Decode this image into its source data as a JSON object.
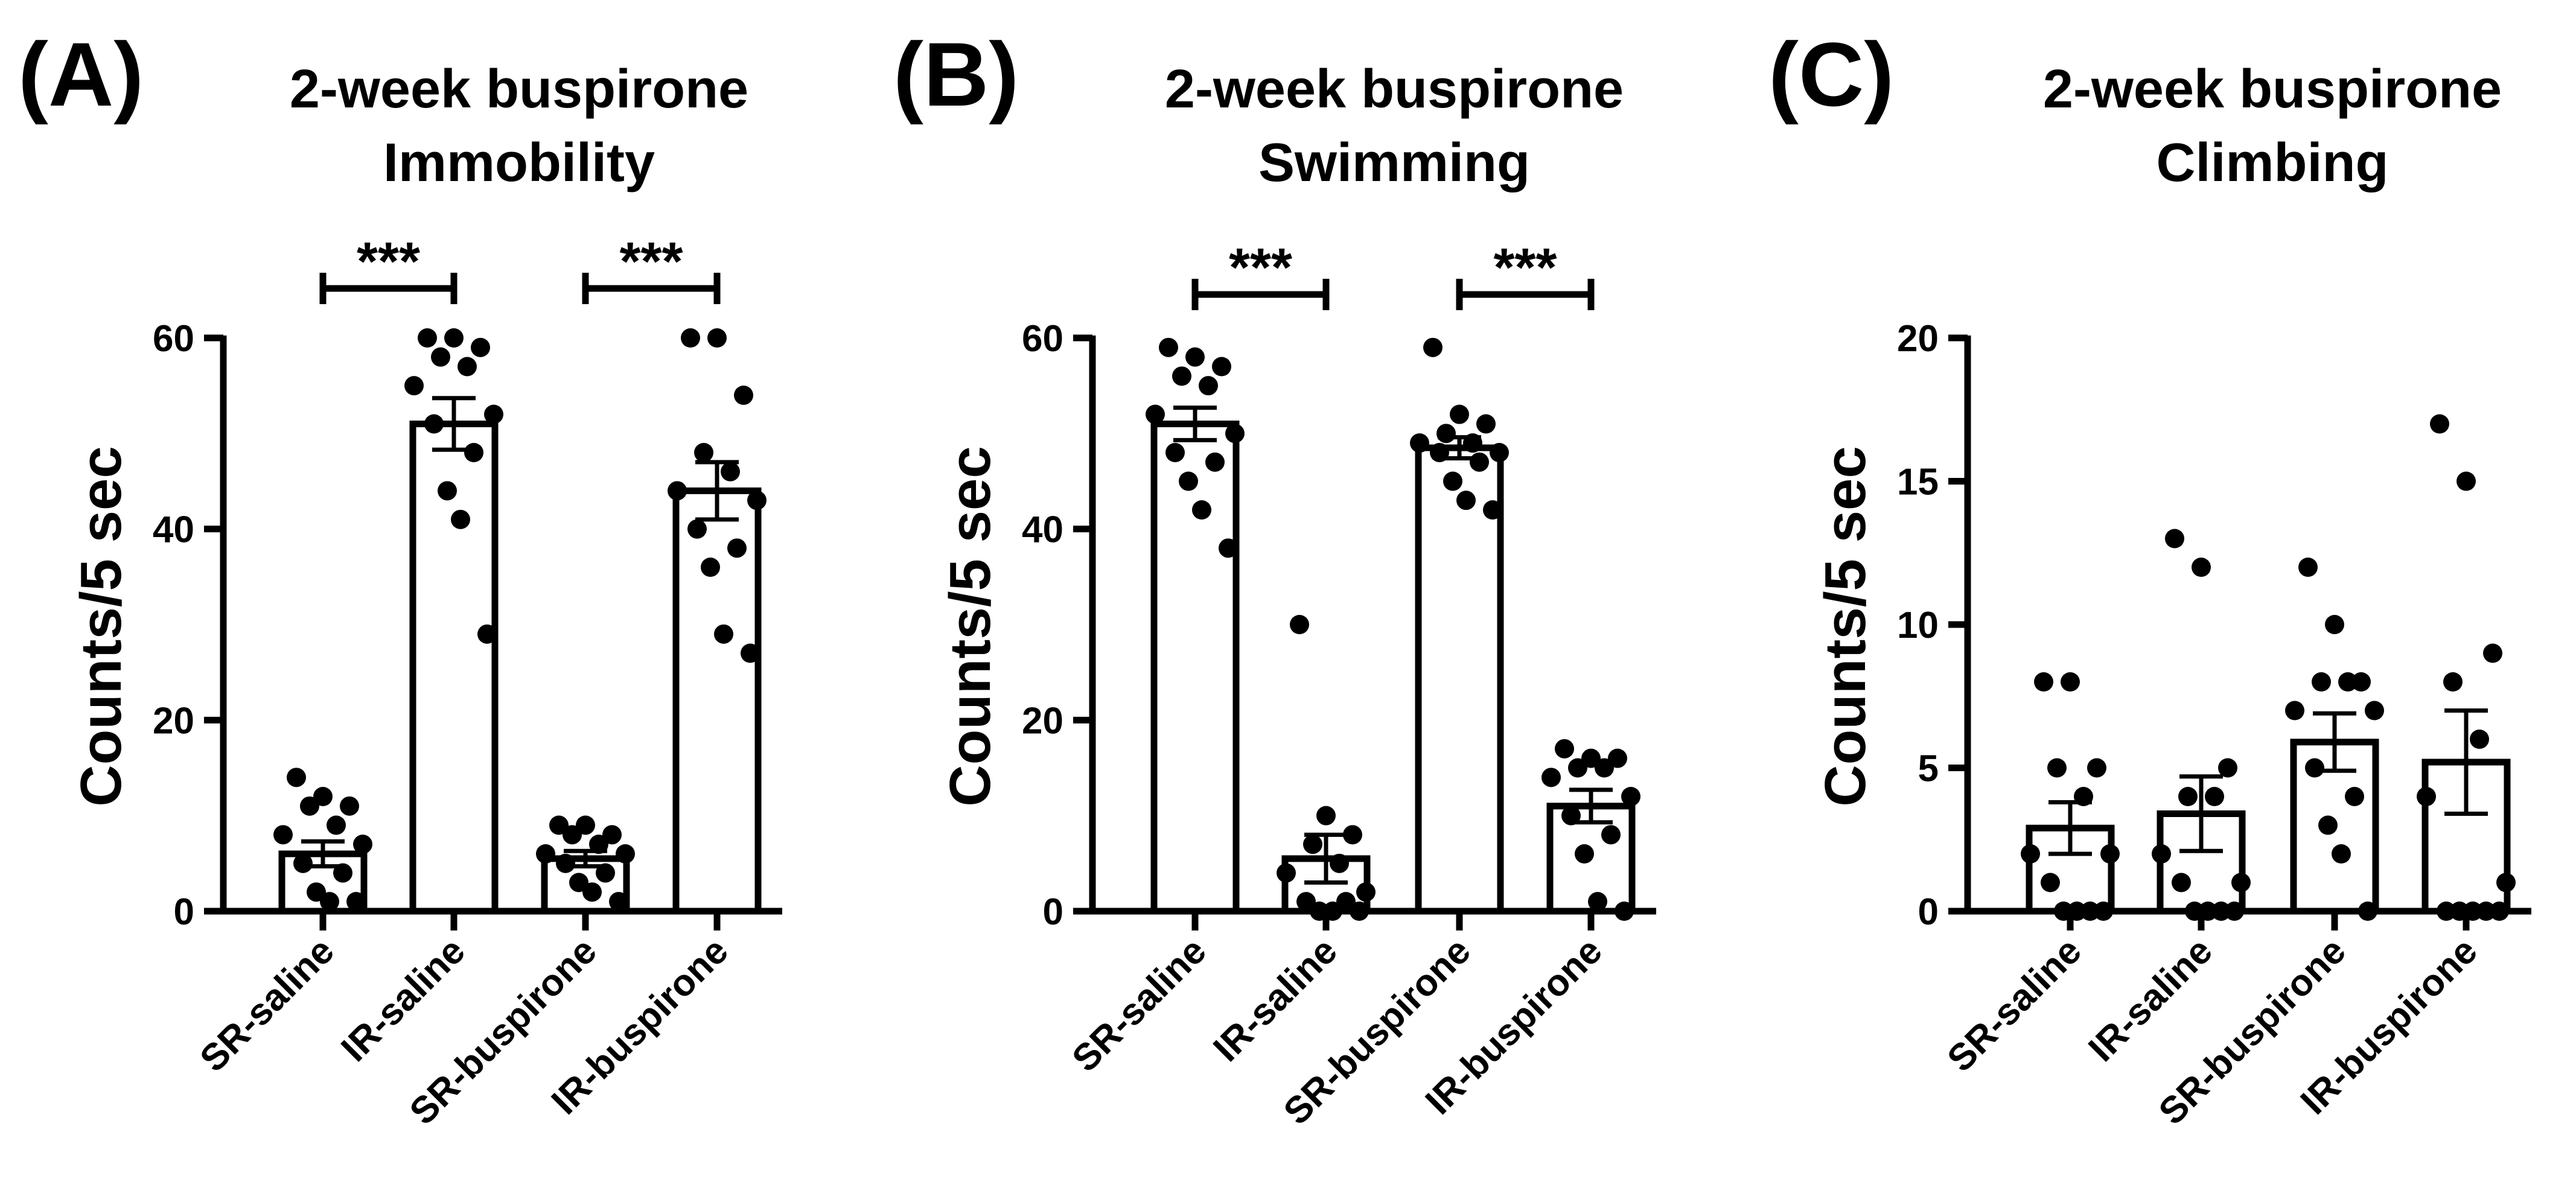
{
  "chart_data": [
    {
      "type": "bar",
      "panel": "(A)",
      "title": [
        "2-week buspirone",
        "Immobility"
      ],
      "xlabel": "",
      "ylabel": "Counts/5 sec",
      "ylim": [
        0,
        60
      ],
      "yticks": [
        0,
        20,
        40,
        60
      ],
      "categories": [
        "SR-saline",
        "IR-saline",
        "SR-buspirone",
        "IR-buspirone"
      ],
      "values": [
        6,
        51,
        5.5,
        44
      ],
      "sem": [
        1.3,
        2.7,
        0.8,
        3.0
      ],
      "points": [
        [
          14,
          12,
          11,
          11,
          9,
          8,
          7,
          5,
          4,
          2,
          1,
          1
        ],
        [
          60,
          60,
          59,
          58,
          57,
          55,
          52,
          51,
          48,
          44,
          41,
          29
        ],
        [
          9,
          9,
          8,
          8,
          7,
          6,
          6,
          5,
          4,
          3,
          2,
          1
        ],
        [
          60,
          60,
          54,
          48,
          46,
          44,
          43,
          40,
          38,
          36,
          29,
          27
        ]
      ],
      "significance": [
        {
          "from": 0,
          "to": 1,
          "label": "***"
        },
        {
          "from": 2,
          "to": 3,
          "label": "***"
        }
      ]
    },
    {
      "type": "bar",
      "panel": "(B)",
      "title": [
        "2-week buspirone",
        "Swimming"
      ],
      "xlabel": "",
      "ylabel": "Counts/5 sec",
      "ylim": [
        0,
        60
      ],
      "yticks": [
        0,
        20,
        40,
        60
      ],
      "categories": [
        "SR-saline",
        "IR-saline",
        "SR-buspirone",
        "IR-buspirone"
      ],
      "values": [
        51,
        5.5,
        48.5,
        11
      ],
      "sem": [
        1.7,
        2.5,
        1.1,
        1.7
      ],
      "points": [
        [
          59,
          58,
          57,
          56,
          55,
          52,
          50,
          48,
          47,
          45,
          42,
          38
        ],
        [
          30,
          10,
          8,
          7,
          5,
          4,
          2,
          1,
          1,
          0,
          0,
          0
        ],
        [
          59,
          52,
          51,
          50,
          49,
          49,
          48,
          48,
          47,
          45,
          43,
          42
        ],
        [
          17,
          16,
          16,
          15,
          15,
          14,
          12,
          10,
          8,
          6,
          1,
          0
        ]
      ],
      "significance": [
        {
          "from": 0,
          "to": 1,
          "label": "***"
        },
        {
          "from": 2,
          "to": 3,
          "label": "***"
        }
      ]
    },
    {
      "type": "bar",
      "panel": "(C)",
      "title": [
        "2-week buspirone",
        "Climbing"
      ],
      "xlabel": "",
      "ylabel": "Counts/5 sec",
      "ylim": [
        0,
        20
      ],
      "yticks": [
        0,
        5,
        10,
        15,
        20
      ],
      "categories": [
        "SR-saline",
        "IR-saline",
        "SR-buspirone",
        "IR-buspirone"
      ],
      "values": [
        2.9,
        3.4,
        5.9,
        5.2
      ],
      "sem": [
        0.9,
        1.3,
        1.0,
        1.8
      ],
      "points": [
        [
          8,
          8,
          5,
          5,
          4,
          2,
          2,
          1,
          0,
          0,
          0,
          0
        ],
        [
          13,
          12,
          5,
          4,
          4,
          2,
          1,
          1,
          0,
          0,
          0,
          0
        ],
        [
          12,
          10,
          8,
          8,
          8,
          7,
          7,
          5,
          4,
          3,
          2,
          0
        ],
        [
          17,
          15,
          9,
          8,
          6,
          4,
          1,
          0,
          0,
          0,
          0,
          0
        ]
      ],
      "significance": []
    }
  ]
}
